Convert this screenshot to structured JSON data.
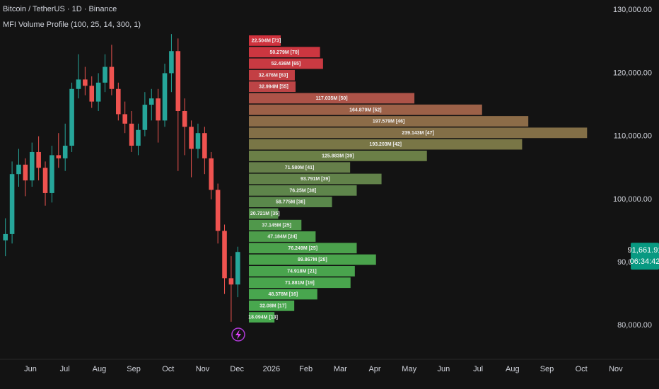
{
  "chart_data": [
    {
      "type": "candlestick",
      "title": "Bitcoin / TetherUS · 1D · Binance",
      "subtitle": "MFI Volume Profile (100, 25, 14, 300, 1)",
      "open": [
        93500,
        94500,
        104000,
        105500,
        103000,
        107500,
        105000,
        101000,
        107000,
        106500,
        108500,
        117500,
        119000,
        118000,
        115500,
        118500,
        121000,
        117500,
        113500,
        112000,
        108500,
        111000,
        115000,
        116000,
        112500,
        120000,
        123500,
        114000,
        111500,
        108000,
        110500,
        106500,
        101500,
        95000,
        87500,
        86500
      ],
      "high": [
        97000,
        106000,
        108000,
        106500,
        109000,
        110000,
        106000,
        108500,
        110500,
        112000,
        118500,
        123000,
        121000,
        119500,
        120000,
        123000,
        124500,
        118500,
        115500,
        114000,
        112000,
        117000,
        117500,
        117500,
        121500,
        126200,
        125500,
        116000,
        112500,
        112000,
        111500,
        107500,
        102500,
        96000,
        91000,
        92500
      ],
      "low": [
        91000,
        93000,
        102000,
        100500,
        102000,
        103000,
        99000,
        99500,
        105000,
        104500,
        107500,
        116000,
        116500,
        114500,
        114000,
        117000,
        116500,
        112500,
        110500,
        107500,
        107000,
        110000,
        112500,
        109000,
        111500,
        117000,
        104500,
        107000,
        103500,
        106500,
        104000,
        100000,
        93000,
        85000,
        80600,
        84500
      ],
      "close": [
        94500,
        104000,
        105500,
        103000,
        107500,
        105000,
        101000,
        107000,
        106500,
        108500,
        117500,
        119000,
        118000,
        115500,
        118500,
        121000,
        117500,
        113500,
        112000,
        108500,
        111000,
        115000,
        116000,
        112500,
        120000,
        123500,
        114000,
        111500,
        108000,
        110500,
        106500,
        101500,
        95000,
        87500,
        86500,
        91661.91
      ],
      "up_color": "#26a69a",
      "down_color": "#ef5350",
      "ylim": [
        73300,
        131600
      ],
      "yticks": [
        {
          "value": 80000,
          "label": "80,000.00"
        },
        {
          "value": 90000,
          "label": "90,000.00"
        },
        {
          "value": 100000,
          "label": "100,000.00"
        },
        {
          "value": 110000,
          "label": "110,000.00"
        },
        {
          "value": 120000,
          "label": "120,000.00"
        },
        {
          "value": 130000,
          "label": "130,000.00"
        }
      ],
      "x_tick_labels": [
        "Jun",
        "Jul",
        "Aug",
        "Sep",
        "Oct",
        "Nov",
        "Dec",
        "2026",
        "Feb",
        "Mar",
        "Apr",
        "May",
        "Jun",
        "Jul",
        "Aug",
        "Sep",
        "Oct",
        "Nov"
      ],
      "last_price": {
        "value": 91661.91,
        "label": "91,661.91"
      },
      "countdown": "06:34:42",
      "price_tag_color": "#089981"
    },
    {
      "type": "hbar",
      "values": [
        22.504,
        50.279,
        52.436,
        32.476,
        32.994,
        117.035,
        164.879,
        197.579,
        239.143,
        193.203,
        125.883,
        71.58,
        93.791,
        76.25,
        58.775,
        20.721,
        37.145,
        47.184,
        76.249,
        89.867,
        74.918,
        71.881,
        48.378,
        32.08,
        18.094
      ],
      "value_labels": [
        "22.504M [73]",
        "50.279M [70]",
        "52.436M [65]",
        "32.476M [63]",
        "32.994M [55]",
        "117.035M [50]",
        "164.879M [52]",
        "197.579M [46]",
        "239.143M [47]",
        "193.203M [42]",
        "125.883M [39]",
        "71.580M [41]",
        "93.791M [39]",
        "76.25M [38]",
        "58.775M [36]",
        "20.721M [35]",
        "37.145M [25]",
        "47.184M [24]",
        "76.249M [25]",
        "89.867M [28]",
        "74.918M [21]",
        "71.881M [19]",
        "48.378M [16]",
        "32.08M [17]",
        "18.094M [13]"
      ],
      "colors": [
        "#d0323d",
        "#cc3640",
        "#c93a42",
        "#c33f44",
        "#bd4446",
        "#ad5348",
        "#9c6148",
        "#8c6c48",
        "#836f47",
        "#797646",
        "#6b7f47",
        "#667f4a",
        "#62824a",
        "#5e854b",
        "#5a884b",
        "#55904b",
        "#50984b",
        "#4d9d4b",
        "#4ba14c",
        "#4aa34c",
        "#49a44d",
        "#49a54d",
        "#48a64e",
        "#48a74e",
        "#47a84e"
      ]
    }
  ]
}
